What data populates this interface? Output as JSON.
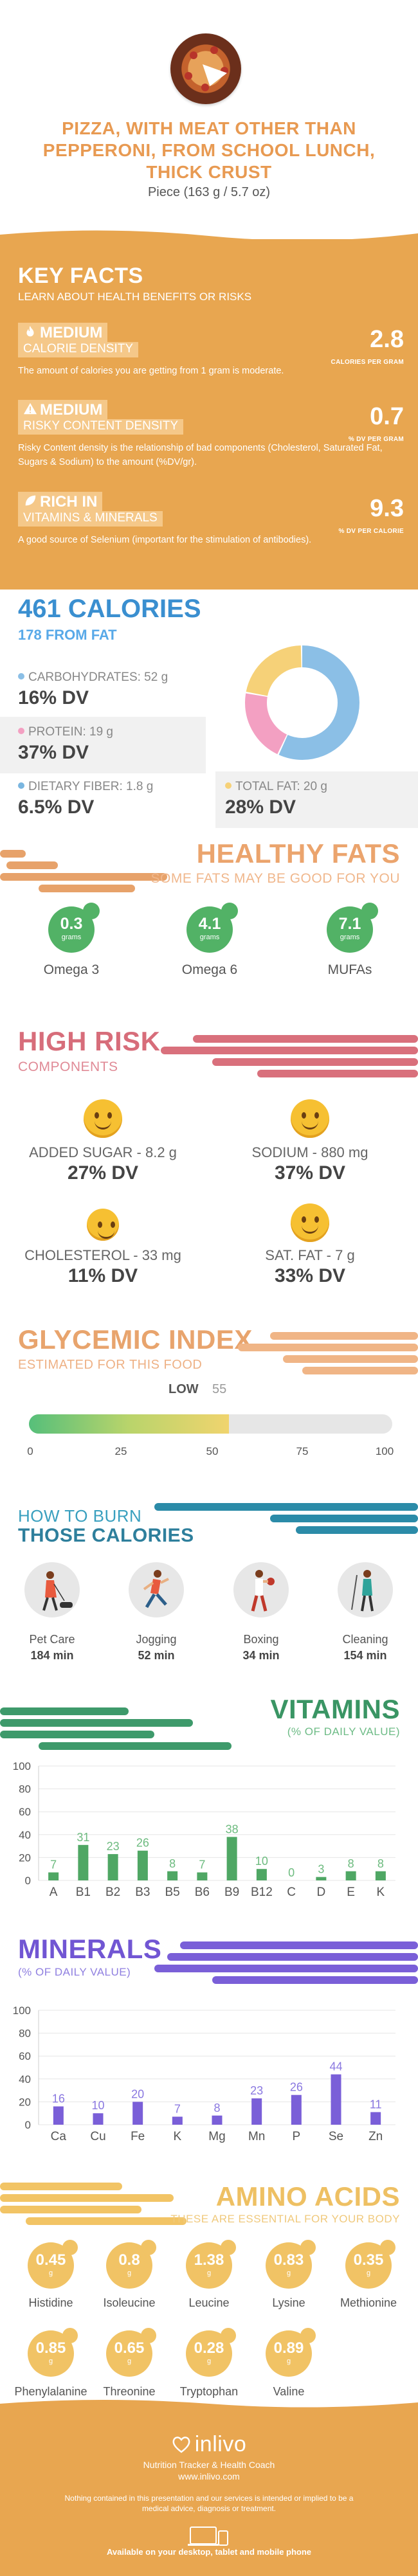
{
  "header": {
    "title": "PIZZA, WITH MEAT OTHER THAN PEPPERONI, FROM SCHOOL LUNCH, THICK CRUST",
    "serving": "Piece (163 g / 5.7 oz)"
  },
  "key_facts": {
    "title": "KEY FACTS",
    "subtitle": "LEARN ABOUT HEALTH BENEFITS OR RISKS",
    "items": [
      {
        "label1": "MEDIUM",
        "label2": "CALORIE DENSITY",
        "value": "2.8",
        "unit": "CALORIES PER GRAM",
        "desc": "The amount of calories you are getting from 1 gram is moderate.",
        "icon": "flame-icon"
      },
      {
        "label1": "MEDIUM",
        "label2": "RISKY CONTENT DENSITY",
        "value": "0.7",
        "unit": "% DV PER GRAM",
        "desc": "Risky Content density is the relationship of bad components (Cholesterol, Saturated Fat, Sugars & Sodium) to the amount (%DV/gr).",
        "icon": "warning-icon"
      },
      {
        "label1": "RICH IN",
        "label2": "VITAMINS & MINERALS",
        "value": "9.3",
        "unit": "% DV PER CALORIE",
        "desc": "A good source of Selenium (important for the stimulation of antibodies).",
        "icon": "leaf-icon"
      }
    ]
  },
  "calories": {
    "title": "461 CALORIES",
    "from_fat": "178 FROM FAT",
    "carbs": {
      "label": "CARBOHYDRATES: 52 g",
      "dv": "16% DV",
      "color": "#8bbfe6"
    },
    "protein": {
      "label": "PROTEIN: 19 g",
      "dv": "37% DV",
      "color": "#f3a0c2"
    },
    "fiber": {
      "label": "DIETARY FIBER: 1.8 g",
      "dv": "6.5% DV",
      "color": "#7ab6e0"
    },
    "fat": {
      "label": "TOTAL FAT: 20 g",
      "dv": "28% DV",
      "color": "#f6d178"
    },
    "donut": [
      {
        "name": "carbohydrates",
        "value": 52,
        "color": "#8bbfe6"
      },
      {
        "name": "protein",
        "value": 19,
        "color": "#f3a0c2"
      },
      {
        "name": "fat",
        "value": 20,
        "color": "#f6d178"
      }
    ]
  },
  "healthy_fats": {
    "title": "HEALTHY FATS",
    "subtitle": "SOME FATS MAY BE GOOD FOR YOU",
    "unit": "grams",
    "items": [
      {
        "value": "0.3",
        "label": "Omega 3"
      },
      {
        "value": "4.1",
        "label": "Omega 6"
      },
      {
        "value": "7.1",
        "label": "MUFAs"
      }
    ]
  },
  "high_risk": {
    "title": "HIGH RISK",
    "subtitle": "COMPONENTS",
    "items": [
      {
        "label": "ADDED SUGAR - 8.2 g",
        "dv": "27% DV"
      },
      {
        "label": "SODIUM - 880 mg",
        "dv": "37% DV"
      },
      {
        "label": "CHOLESTEROL - 33 mg",
        "dv": "11% DV"
      },
      {
        "label": "SAT. FAT - 7 g",
        "dv": "33% DV"
      }
    ]
  },
  "glycemic": {
    "title": "GLYCEMIC INDEX",
    "subtitle": "ESTIMATED FOR THIS FOOD",
    "level": "LOW",
    "value": 55,
    "value_text": "55",
    "ticks": [
      "0",
      "25",
      "50",
      "75",
      "100"
    ]
  },
  "burn": {
    "title1": "HOW TO BURN",
    "title2": "THOSE CALORIES",
    "items": [
      {
        "label": "Pet Care",
        "time": "184 min"
      },
      {
        "label": "Jogging",
        "time": "52 min"
      },
      {
        "label": "Boxing",
        "time": "34 min"
      },
      {
        "label": "Cleaning",
        "time": "154 min"
      }
    ]
  },
  "vitamins": {
    "title": "VITAMINS",
    "subtitle": "(% OF DAILY VALUE)"
  },
  "minerals": {
    "title": "MINERALS",
    "subtitle": "(% OF DAILY VALUE)"
  },
  "chart_data": [
    {
      "type": "bar",
      "categories": [
        "A",
        "B1",
        "B2",
        "B3",
        "B5",
        "B6",
        "B9",
        "B12",
        "C",
        "D",
        "E",
        "K"
      ],
      "values": [
        7,
        31,
        23,
        26,
        8,
        7,
        38,
        10,
        0,
        3,
        8,
        8
      ],
      "ylim": [
        0,
        100
      ],
      "yticks": [
        "0",
        "20",
        "40",
        "60",
        "80",
        "100"
      ],
      "color": "#4fa764",
      "label_color": "#6dbb7f"
    },
    {
      "type": "bar",
      "categories": [
        "Ca",
        "Cu",
        "Fe",
        "K",
        "Mg",
        "Mn",
        "P",
        "Se",
        "Zn"
      ],
      "values": [
        16,
        10,
        20,
        7,
        8,
        23,
        26,
        44,
        11
      ],
      "ylim": [
        0,
        100
      ],
      "yticks": [
        "0",
        "20",
        "40",
        "60",
        "80",
        "100"
      ],
      "color": "#7a5fd8",
      "label_color": "#8a78e0"
    }
  ],
  "amino": {
    "title": "AMINO ACIDS",
    "subtitle": "THESE ARE ESSENTIAL FOR YOUR BODY",
    "unit": "g",
    "items": [
      {
        "value": "0.45",
        "label": "Histidine"
      },
      {
        "value": "0.8",
        "label": "Isoleucine"
      },
      {
        "value": "1.38",
        "label": "Leucine"
      },
      {
        "value": "0.83",
        "label": "Lysine"
      },
      {
        "value": "0.35",
        "label": "Methionine"
      },
      {
        "value": "0.85",
        "label": "Phenylalanine"
      },
      {
        "value": "0.65",
        "label": "Threonine"
      },
      {
        "value": "0.28",
        "label": "Tryptophan"
      },
      {
        "value": "0.89",
        "label": "Valine"
      }
    ]
  },
  "footer": {
    "brand": "inlivo",
    "tagline": "Nutrition Tracker & Health Coach",
    "url": "www.inlivo.com",
    "disclaimer": "Nothing contained in this presentation and our services is intended or implied to be a medical advice, diagnosis or treatment.",
    "available": "Available on your desktop, tablet and mobile phone"
  }
}
